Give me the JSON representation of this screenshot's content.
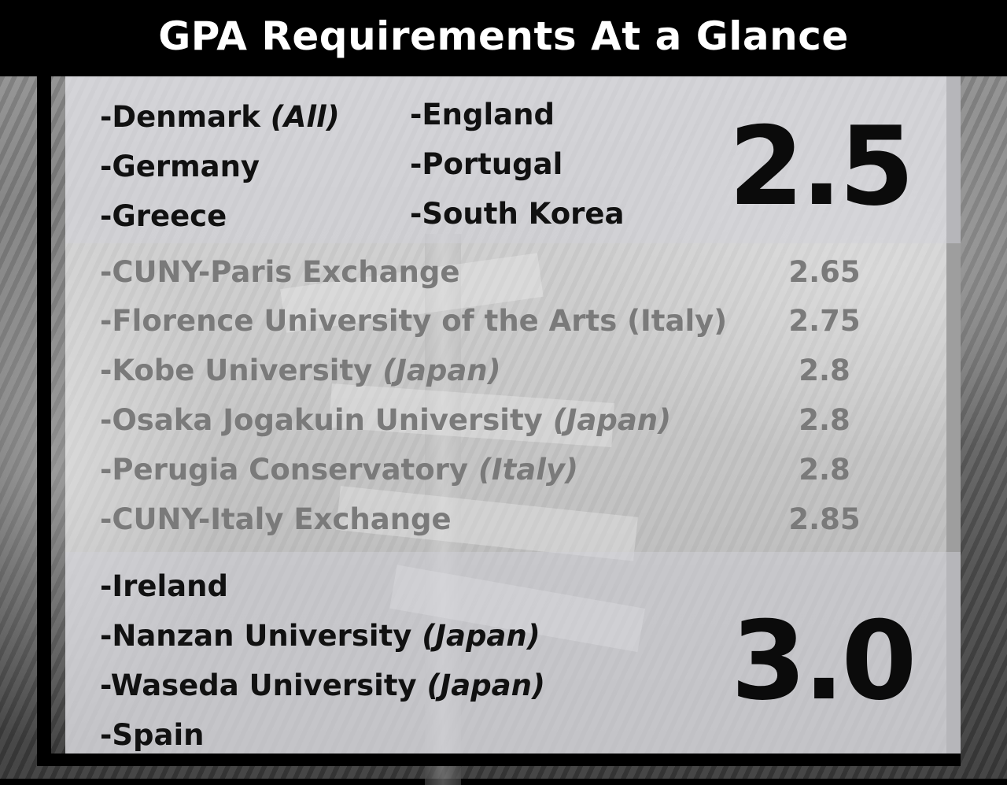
{
  "title": "GPA Requirements At a Glance",
  "tier_25": {
    "value": "2.5",
    "col1": [
      {
        "name": "-Denmark",
        "note": "(All)"
      },
      {
        "name": "-Germany",
        "note": ""
      },
      {
        "name": "-Greece",
        "note": ""
      }
    ],
    "col2": [
      {
        "name": "-England",
        "note": ""
      },
      {
        "name": "-Portugal",
        "note": ""
      },
      {
        "name": "-South Korea",
        "note": ""
      }
    ]
  },
  "tier_mid": {
    "rows": [
      {
        "name": "-CUNY-Paris Exchange",
        "note": "",
        "gpa": "2.65"
      },
      {
        "name": "-Florence University of the Arts (Italy)",
        "note": "",
        "gpa": "2.75"
      },
      {
        "name": "-Kobe University",
        "note": "(Japan)",
        "gpa": "2.8"
      },
      {
        "name": "-Osaka Jogakuin University",
        "note": "(Japan)",
        "gpa": "2.8"
      },
      {
        "name": "-Perugia Conservatory",
        "note": "(Italy)",
        "gpa": "2.8"
      },
      {
        "name": "-CUNY-Italy Exchange",
        "note": "",
        "gpa": "2.85"
      }
    ]
  },
  "tier_30": {
    "value": "3.0",
    "items": [
      {
        "name": "-Ireland",
        "note": ""
      },
      {
        "name": "-Nanzan University",
        "note": "(Japan)"
      },
      {
        "name": "-Waseda University",
        "note": "(Japan)"
      },
      {
        "name": "-Spain",
        "note": ""
      }
    ]
  }
}
